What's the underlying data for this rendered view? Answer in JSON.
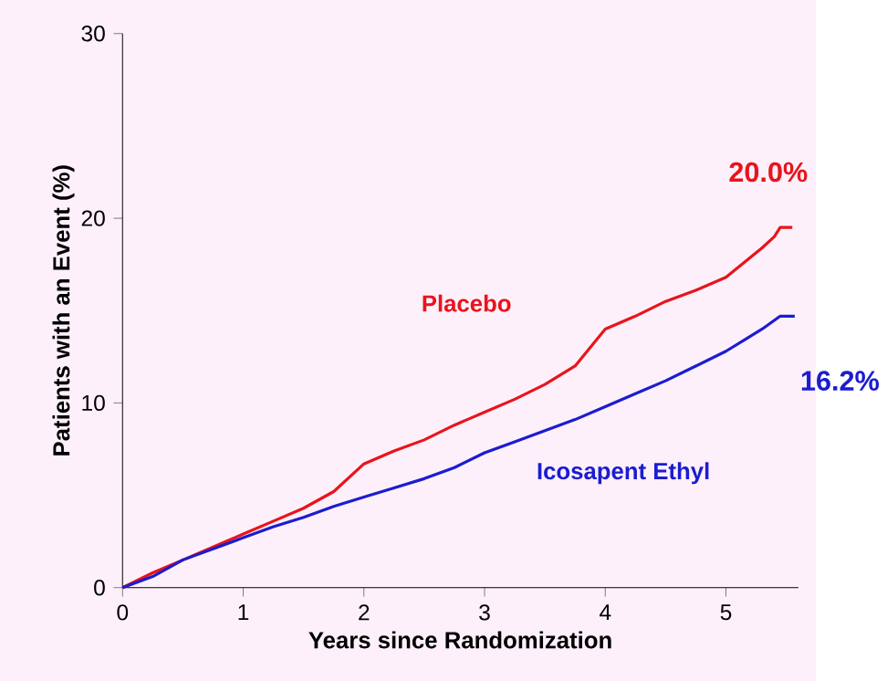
{
  "chart_data": {
    "type": "line",
    "xlabel": "Years since Randomization",
    "ylabel": "Patients with an Event (%)",
    "xlim": [
      0,
      5.6
    ],
    "ylim": [
      0,
      30
    ],
    "xticks": [
      0,
      1,
      2,
      3,
      4,
      5
    ],
    "yticks": [
      0,
      10,
      20,
      30
    ],
    "grid": false,
    "legend": false,
    "series": [
      {
        "name": "Placebo",
        "color": "#e8141c",
        "x": [
          0,
          0.25,
          0.5,
          0.75,
          1,
          1.25,
          1.5,
          1.75,
          2,
          2.25,
          2.5,
          2.75,
          3,
          3.25,
          3.5,
          3.75,
          4,
          4.25,
          4.5,
          4.75,
          5,
          5.15,
          5.3,
          5.4,
          5.45,
          5.55
        ],
        "values": [
          0,
          0.8,
          1.5,
          2.2,
          2.9,
          3.6,
          4.3,
          5.2,
          6.7,
          7.4,
          8.0,
          8.8,
          9.5,
          10.2,
          11.0,
          12.0,
          14.0,
          14.7,
          15.5,
          16.1,
          16.8,
          17.6,
          18.4,
          19.0,
          19.5,
          19.5
        ]
      },
      {
        "name": "Icosapent Ethyl",
        "color": "#1c1cd0",
        "x": [
          0,
          0.25,
          0.5,
          0.75,
          1,
          1.25,
          1.5,
          1.75,
          2,
          2.25,
          2.5,
          2.75,
          3,
          3.25,
          3.5,
          3.75,
          4,
          4.25,
          4.5,
          4.75,
          5,
          5.15,
          5.3,
          5.45,
          5.57
        ],
        "values": [
          0,
          0.6,
          1.5,
          2.1,
          2.7,
          3.3,
          3.8,
          4.4,
          4.9,
          5.4,
          5.9,
          6.5,
          7.3,
          7.9,
          8.5,
          9.1,
          9.8,
          10.5,
          11.2,
          12.0,
          12.8,
          13.4,
          14.0,
          14.7,
          14.7
        ]
      }
    ],
    "annotations": [
      "20.0%",
      "16.2%"
    ]
  }
}
